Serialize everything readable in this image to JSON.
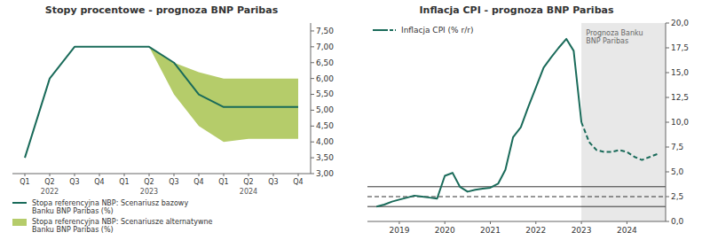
{
  "chart_data": [
    {
      "type": "line",
      "title": "Stopy procentowe - prognoza BNP Paribas",
      "categories": [
        "Q1",
        "Q2",
        "Q3",
        "Q4",
        "Q1",
        "Q2",
        "Q3",
        "Q4",
        "Q1",
        "Q2",
        "Q3",
        "Q4"
      ],
      "series": [
        {
          "name": "Stopa referencyjna NBP: Scenariusz bazowy\nBanku BNP Paribas (%)",
          "type": "line",
          "color": "#1a6b5a",
          "line_style": "solid",
          "values": [
            3.5,
            6.0,
            7.0,
            7.0,
            7.0,
            7.0,
            6.5,
            5.5,
            5.1,
            5.1,
            5.1,
            5.1
          ]
        },
        {
          "name": "Stopa referencyjna NBP: Scenariusze alternatywne\nBanku BNP Paribas (%)",
          "type": "band",
          "color": "#b5cc6a",
          "values": [
            null,
            null,
            null,
            null,
            null,
            7.0,
            6.5,
            6.2,
            6.0,
            6.0,
            6.0,
            6.0
          ],
          "lower": [
            null,
            null,
            null,
            null,
            null,
            7.0,
            5.5,
            4.5,
            4.0,
            4.1,
            4.1,
            4.1
          ]
        }
      ],
      "ylim": [
        3.0,
        7.75
      ],
      "yticks": [
        {
          "value": 3.0,
          "label": "3,00"
        },
        {
          "value": 3.5,
          "label": "3,50"
        },
        {
          "value": 4.0,
          "label": "4,00"
        },
        {
          "value": 4.5,
          "label": "4,50"
        },
        {
          "value": 5.0,
          "label": "5,00"
        },
        {
          "value": 5.5,
          "label": "5,50"
        },
        {
          "value": 6.0,
          "label": "6,00"
        },
        {
          "value": 6.5,
          "label": "6,50"
        },
        {
          "value": 7.0,
          "label": "7,00"
        },
        {
          "value": 7.5,
          "label": "7,50"
        }
      ],
      "annotations": [
        {
          "text": "2022",
          "x": 1
        },
        {
          "text": "2023",
          "x": 5
        },
        {
          "text": "2024",
          "x": 9
        }
      ],
      "legend": "lower left",
      "grid": false
    },
    {
      "type": "line",
      "title": "Inflacja CPI - prognoza BNP Paribas",
      "series": [
        {
          "name": "Inflacja CPI (% r/r)",
          "type": "line",
          "color": "#1a6b5a",
          "line_style": "solid",
          "x": [
            2018.5,
            2018.67,
            2018.84,
            2019.0,
            2019.17,
            2019.33,
            2019.5,
            2019.67,
            2019.83,
            2020.0,
            2020.17,
            2020.33,
            2020.5,
            2020.67,
            2020.83,
            2021.0,
            2021.17,
            2021.33,
            2021.5,
            2021.67,
            2021.83,
            2022.0,
            2022.17,
            2022.33,
            2022.5,
            2022.67,
            2022.83,
            2023.0
          ],
          "values": [
            1.5,
            1.7,
            2.0,
            2.2,
            2.4,
            2.6,
            2.5,
            2.4,
            2.3,
            4.6,
            4.9,
            3.5,
            3.0,
            3.2,
            3.3,
            3.4,
            3.8,
            5.2,
            8.5,
            9.5,
            11.5,
            13.5,
            15.5,
            16.5,
            17.5,
            18.4,
            17.2,
            10.0
          ]
        },
        {
          "type": "line",
          "color": "#1a6b5a",
          "line_style": "dashed",
          "x": [
            2023.0,
            2023.17,
            2023.33,
            2023.5,
            2023.67,
            2023.83,
            2024.0,
            2024.17,
            2024.33,
            2024.5,
            2024.67
          ],
          "values": [
            10.0,
            8.0,
            7.2,
            7.0,
            7.0,
            7.2,
            7.0,
            6.5,
            6.2,
            6.5,
            6.8
          ]
        }
      ],
      "xlim": [
        2018.3,
        2024.85
      ],
      "xticks": [
        2019,
        2020,
        2021,
        2022,
        2023,
        2024
      ],
      "ylim": [
        0.0,
        20.0
      ],
      "yticks": [
        {
          "value": 0.0,
          "label": "0,0"
        },
        {
          "value": 2.5,
          "label": "2,5"
        },
        {
          "value": 5.0,
          "label": "5,0"
        },
        {
          "value": 7.5,
          "label": "7,5"
        },
        {
          "value": 10.0,
          "label": "10,0"
        },
        {
          "value": 12.5,
          "label": "12,5"
        },
        {
          "value": 15.0,
          "label": "15,0"
        },
        {
          "value": 17.5,
          "label": "17,5"
        },
        {
          "value": 20.0,
          "label": "20,0"
        }
      ],
      "hlines": [
        {
          "value": 3.5,
          "line_style": "solid"
        },
        {
          "value": 2.5,
          "line_style": "dashed"
        },
        {
          "value": 1.5,
          "line_style": "solid"
        }
      ],
      "shaded": {
        "from": 2023.0,
        "to": 2025.25,
        "color": "#e8e8e8"
      },
      "annotations": [
        {
          "text": "Prognoza Banku\nBNP Paribas",
          "x": 2023.1,
          "y": 19.5
        }
      ],
      "legend": "upper left",
      "grid": false
    }
  ]
}
